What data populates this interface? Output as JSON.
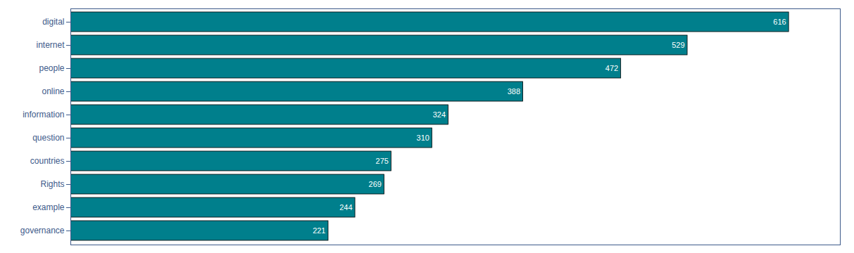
{
  "chart_data": {
    "type": "bar",
    "orientation": "horizontal",
    "categories": [
      "digital",
      "internet",
      "people",
      "online",
      "information",
      "question",
      "countries",
      "Rights",
      "example",
      "governance"
    ],
    "values": [
      616,
      529,
      472,
      388,
      324,
      310,
      275,
      269,
      244,
      221
    ],
    "color": "#007f8c",
    "xlim": [
      0,
      660
    ],
    "xticks": [],
    "data_labels": true,
    "tick_labels": "y",
    "grid": false
  }
}
